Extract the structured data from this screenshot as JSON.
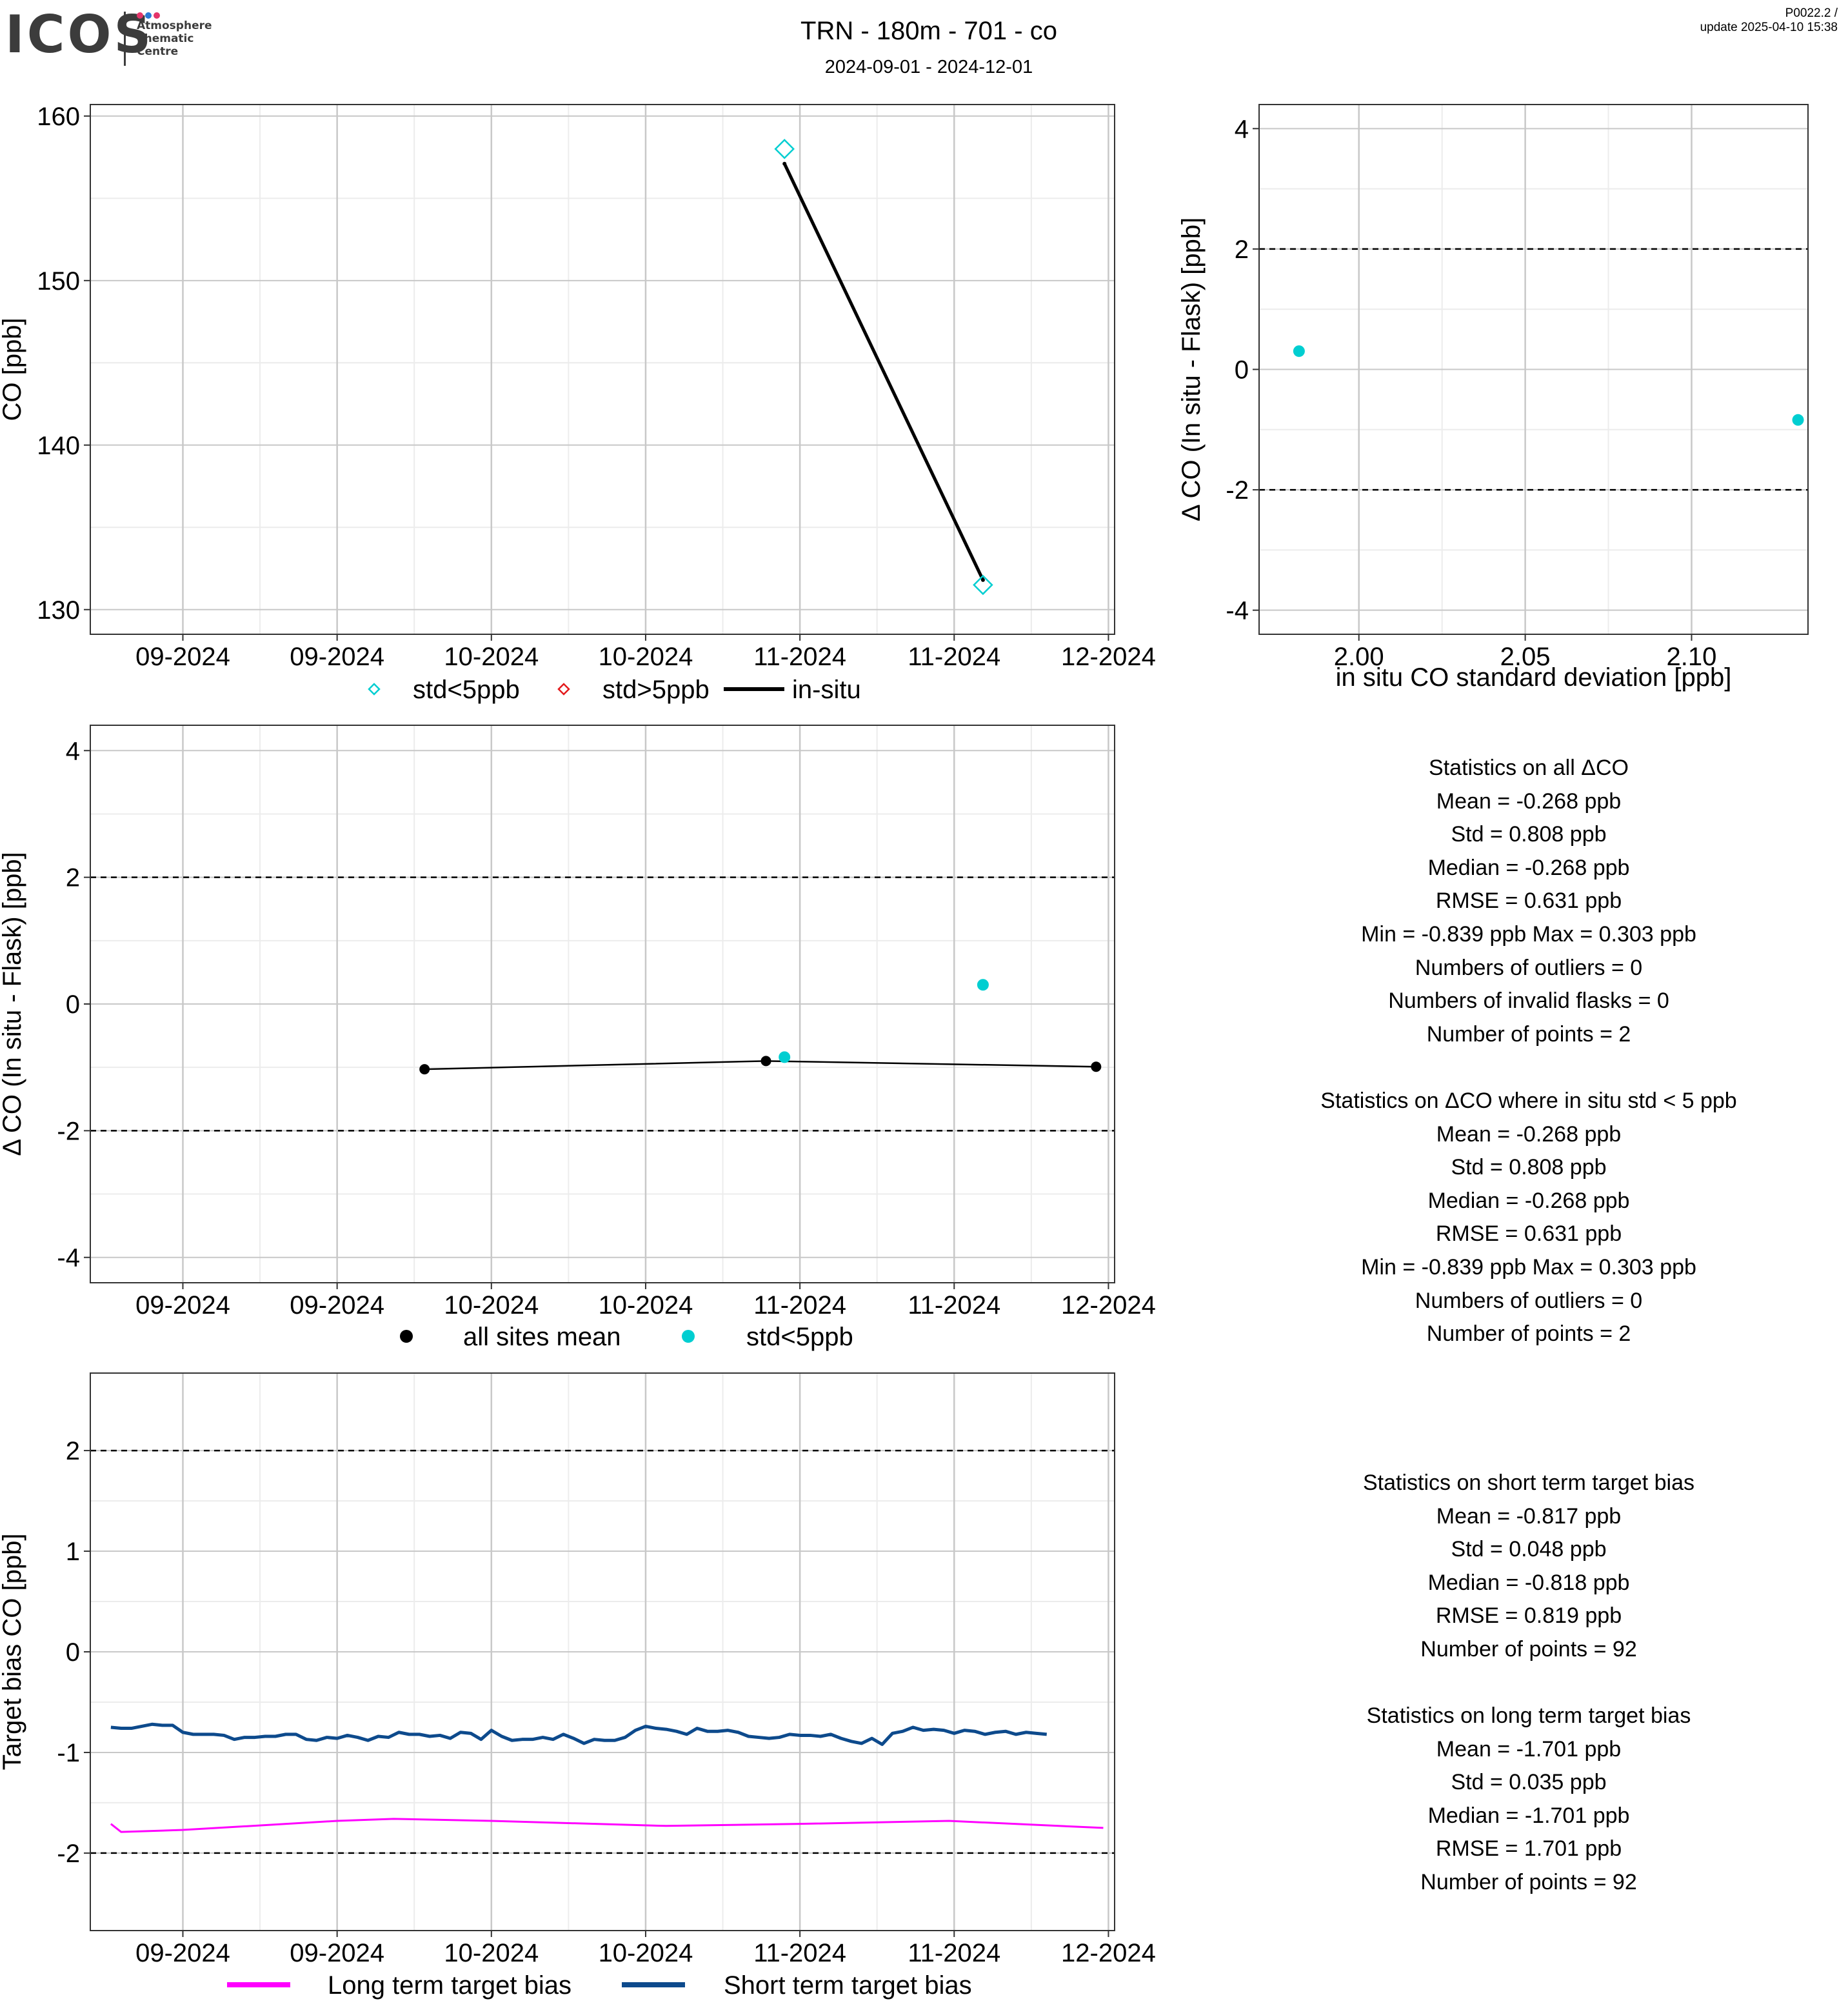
{
  "header": {
    "logo_text": "ICOS",
    "logo_subtitle": [
      "Atmosphere",
      "Thematic",
      "Centre"
    ],
    "title": "TRN - 180m - 701 - co",
    "subtitle": "2024-09-01 - 2024-12-01",
    "version": "P0022.2 /",
    "update": "update  2025-04-10 15:38"
  },
  "colors": {
    "cyan": "#00CED1",
    "red": "#E31A1C",
    "black": "#000000",
    "magenta": "#FF00FF",
    "navy": "#0D4A8C",
    "grid_major": "#c8c8c8",
    "grid_minor": "#ececec",
    "logo_dots": [
      "#e4356a",
      "#2c7bd6",
      "#e4356a"
    ]
  },
  "chart_data": [
    {
      "id": "co-timeseries",
      "type": "line",
      "ylabel": "CO [ppb]",
      "xlabel": "",
      "x_tick_labels": [
        "09-2024",
        "09-2024",
        "10-2024",
        "10-2024",
        "11-2024",
        "11-2024",
        "12-2024"
      ],
      "x_tick_days": [
        -15,
        0,
        15,
        30,
        45,
        60,
        75
      ],
      "xlim_days": [
        -24,
        75.6
      ],
      "y_ticks": [
        130,
        140,
        150,
        160
      ],
      "ylim": [
        128.5,
        160.7
      ],
      "series": [
        {
          "name": "std<5ppb",
          "marker": "diamond",
          "color": "cyan",
          "x_days": [
            43.5,
            62.8
          ],
          "values": [
            158.0,
            131.5
          ]
        },
        {
          "name": "std>5ppb",
          "marker": "diamond",
          "color": "red",
          "x_days": [],
          "values": []
        },
        {
          "name": "in-situ",
          "marker": "line",
          "color": "black",
          "x_days": [
            43.5,
            62.8
          ],
          "values": [
            157.1,
            131.8
          ]
        }
      ],
      "legend": {
        "position": "bottom",
        "entries": [
          "std<5ppb",
          "std>5ppb",
          "in-situ"
        ]
      }
    },
    {
      "id": "delta-vs-std",
      "type": "scatter",
      "xlabel": "in situ CO standard deviation [ppb]",
      "ylabel": "Δ CO (In situ - Flask) [ppb]",
      "x_ticks": [
        2.0,
        2.05,
        2.1
      ],
      "x_tick_labels": [
        "2.00",
        "2.05",
        "2.10"
      ],
      "xlim": [
        1.97,
        2.135
      ],
      "y_ticks": [
        -4,
        -2,
        0,
        2,
        4
      ],
      "ylim": [
        -4.4,
        4.4
      ],
      "reference_lines": [
        2,
        -2
      ],
      "series": [
        {
          "name": "std<5ppb",
          "color": "cyan",
          "x": [
            1.982,
            2.132
          ],
          "y": [
            0.303,
            -0.839
          ]
        }
      ]
    },
    {
      "id": "delta-timeseries",
      "type": "scatter",
      "ylabel": "Δ CO (In situ - Flask) [ppb]",
      "xlabel": "",
      "x_tick_labels": [
        "09-2024",
        "09-2024",
        "10-2024",
        "10-2024",
        "11-2024",
        "11-2024",
        "12-2024"
      ],
      "x_tick_days": [
        -15,
        0,
        15,
        30,
        45,
        60,
        75
      ],
      "xlim_days": [
        -24,
        75.6
      ],
      "y_ticks": [
        -4,
        -2,
        0,
        2,
        4
      ],
      "ylim": [
        -4.4,
        4.4
      ],
      "reference_lines": [
        2,
        -2
      ],
      "series": [
        {
          "name": "all sites mean",
          "marker": "dot-line",
          "color": "black",
          "x_days": [
            8.5,
            41.7,
            73.8
          ],
          "values": [
            -1.03,
            -0.9,
            -0.99
          ]
        },
        {
          "name": "std<5ppb",
          "marker": "dot",
          "color": "cyan",
          "x_days": [
            43.5,
            62.8
          ],
          "values": [
            -0.839,
            0.303
          ]
        }
      ],
      "legend": {
        "position": "bottom",
        "entries": [
          "all sites mean",
          "std<5ppb"
        ]
      }
    },
    {
      "id": "target-bias",
      "type": "line",
      "ylabel": "Target bias CO [ppb]",
      "xlabel": "",
      "x_tick_labels": [
        "09-2024",
        "09-2024",
        "10-2024",
        "10-2024",
        "11-2024",
        "11-2024",
        "12-2024"
      ],
      "x_tick_days": [
        -15,
        0,
        15,
        30,
        45,
        60,
        75
      ],
      "xlim_days": [
        -24,
        75.6
      ],
      "y_ticks": [
        -2,
        -1,
        0,
        1,
        2
      ],
      "ylim": [
        -2.77,
        2.77
      ],
      "reference_lines": [
        2,
        -2
      ],
      "series": [
        {
          "name": "Long term target bias",
          "color": "magenta",
          "x_days": [
            -22,
            -21,
            -15,
            0,
            5.5,
            15,
            32,
            45,
            59.5,
            74.5
          ],
          "values": [
            -1.71,
            -1.79,
            -1.77,
            -1.68,
            -1.66,
            -1.68,
            -1.73,
            -1.71,
            -1.68,
            -1.75
          ]
        },
        {
          "name": "Short term target bias",
          "color": "navy",
          "x_days": [
            -22,
            -21,
            -20,
            -19,
            -18,
            -17,
            -16,
            -15,
            -14,
            -13,
            -12,
            -11,
            -10,
            -9,
            -8,
            -7,
            -6,
            -5,
            -4,
            -3,
            -2,
            -1,
            0,
            1,
            2,
            3,
            4,
            5,
            6,
            7,
            8,
            9,
            10,
            11,
            12,
            13,
            14,
            15,
            16,
            17,
            18,
            19,
            20,
            21,
            22,
            23,
            24,
            25,
            26,
            27,
            28,
            29,
            30,
            31,
            32,
            33,
            34,
            35,
            36,
            37,
            38,
            39,
            40,
            41,
            42,
            43,
            44,
            45,
            46,
            47,
            48,
            49,
            50,
            51,
            52,
            53,
            54,
            55,
            56,
            57,
            58,
            59,
            60,
            61,
            62,
            63,
            64,
            65,
            66,
            67,
            68,
            69
          ],
          "values": [
            -0.75,
            -0.76,
            -0.76,
            -0.74,
            -0.72,
            -0.73,
            -0.73,
            -0.8,
            -0.82,
            -0.82,
            -0.82,
            -0.83,
            -0.87,
            -0.85,
            -0.85,
            -0.84,
            -0.84,
            -0.82,
            -0.82,
            -0.87,
            -0.88,
            -0.85,
            -0.86,
            -0.83,
            -0.85,
            -0.88,
            -0.84,
            -0.85,
            -0.8,
            -0.82,
            -0.82,
            -0.84,
            -0.83,
            -0.86,
            -0.8,
            -0.81,
            -0.87,
            -0.78,
            -0.84,
            -0.88,
            -0.87,
            -0.87,
            -0.85,
            -0.87,
            -0.82,
            -0.86,
            -0.91,
            -0.87,
            -0.88,
            -0.88,
            -0.85,
            -0.78,
            -0.74,
            -0.76,
            -0.77,
            -0.79,
            -0.82,
            -0.76,
            -0.79,
            -0.79,
            -0.78,
            -0.8,
            -0.84,
            -0.85,
            -0.86,
            -0.85,
            -0.82,
            -0.83,
            -0.83,
            -0.84,
            -0.82,
            -0.86,
            -0.89,
            -0.91,
            -0.86,
            -0.92,
            -0.81,
            -0.79,
            -0.75,
            -0.78,
            -0.77,
            -0.78,
            -0.81,
            -0.78,
            -0.79,
            -0.82,
            -0.8,
            -0.79,
            -0.82,
            -0.8,
            -0.81,
            -0.82
          ]
        }
      ],
      "legend": {
        "position": "bottom",
        "entries": [
          "Long term target bias",
          "Short term target bias"
        ]
      }
    }
  ],
  "stats": {
    "all": {
      "title": "Statistics on all ΔCO",
      "lines": [
        "Mean =  -0.268 ppb",
        "Std =  0.808 ppb",
        "Median =  -0.268 ppb",
        "RMSE =  0.631 ppb",
        "Min =  -0.839 ppb Max =  0.303 ppb",
        "Numbers of outliers =  0",
        "Numbers of invalid flasks =  0",
        "Number of points =  2"
      ]
    },
    "filtered": {
      "title": "Statistics on ΔCO where in situ std < 5 ppb",
      "lines": [
        "Mean =  -0.268 ppb",
        "Std =  0.808 ppb",
        "Median =  -0.268 ppb",
        "RMSE =  0.631 ppb",
        "Min =  -0.839 ppb Max =  0.303 ppb",
        "Numbers of outliers =  0",
        "Number of points =  2"
      ]
    },
    "short_term": {
      "title": "Statistics on short term target bias",
      "lines": [
        "Mean =  -0.817 ppb",
        "Std =  0.048 ppb",
        "Median =  -0.818 ppb",
        "RMSE =  0.819 ppb",
        "Number of points =  92"
      ]
    },
    "long_term": {
      "title": "Statistics on long term target bias",
      "lines": [
        "Mean =  -1.701 ppb",
        "Std =  0.035 ppb",
        "Median =  -1.701 ppb",
        "RMSE =  1.701 ppb",
        "Number of points =  92"
      ]
    }
  }
}
